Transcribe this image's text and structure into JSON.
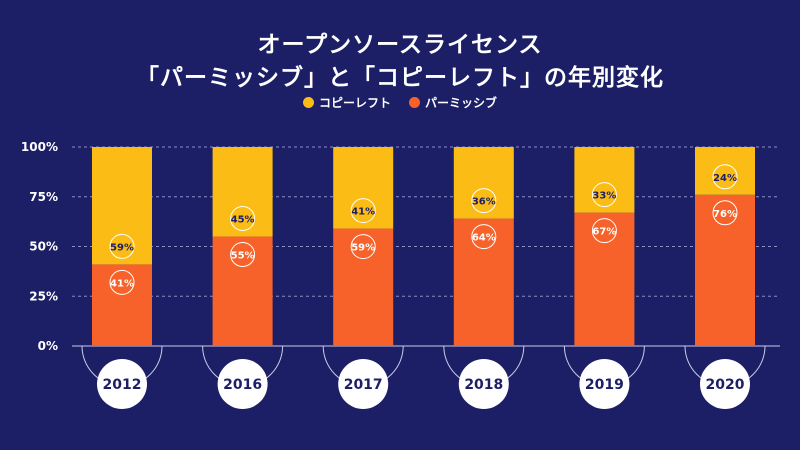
{
  "chart_data": {
    "type": "bar",
    "stacked": true,
    "title_lines": [
      "オープンソースライセンス",
      "「パーミッシブ」と「コピーレフト」の年別変化"
    ],
    "categories": [
      "2012",
      "2016",
      "2017",
      "2018",
      "2019",
      "2020"
    ],
    "series": [
      {
        "name": "パーミッシブ",
        "color": "#f7622a",
        "values": [
          41,
          55,
          59,
          64,
          67,
          76
        ],
        "labels": [
          "41%",
          "55%",
          "59%",
          "64%",
          "67%",
          "76%"
        ]
      },
      {
        "name": "コピーレフト",
        "color": "#fbbc16",
        "values": [
          59,
          45,
          41,
          36,
          33,
          24
        ],
        "labels": [
          "59%",
          "45%",
          "41%",
          "36%",
          "33%",
          "24%"
        ]
      }
    ],
    "y_ticks": [
      "0%",
      "25%",
      "50%",
      "75%",
      "100%"
    ],
    "ylim": [
      0,
      100
    ],
    "grid": true,
    "legend_position": "top-center"
  },
  "legend": {
    "items": [
      {
        "label": "コピーレフト",
        "color": "#fbbc16"
      },
      {
        "label": "パーミッシブ",
        "color": "#f7622a"
      }
    ]
  }
}
